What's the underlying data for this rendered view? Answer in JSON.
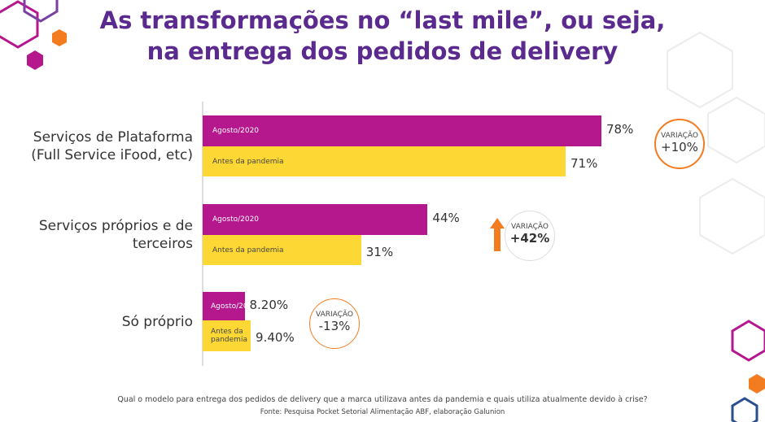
{
  "chart_data": {
    "type": "bar",
    "title": [
      "As transformações no “last mile”, ou seja,",
      "na entrega dos pedidos de delivery"
    ],
    "categories": [
      "Serviços de Plataforma (Full Service iFood, etc)",
      "Serviços próprios e de terceiros",
      "Só próprio"
    ],
    "series": [
      {
        "name": "Agosto/2020",
        "color": "#b5178d",
        "values": [
          78,
          44,
          8.2
        ],
        "value_labels": [
          "78%",
          "44%",
          "8.20%"
        ]
      },
      {
        "name": "Antes da pandemia",
        "color": "#fdd835",
        "values": [
          71,
          31,
          9.4
        ],
        "value_labels": [
          "71%",
          "31%",
          "9.40%"
        ]
      }
    ],
    "annotations": [
      {
        "label": "VARIAÇÃO",
        "value": "+10%"
      },
      {
        "label": "VARIAÇÃO",
        "value": "+42%"
      },
      {
        "label": "VARIAÇÃO",
        "value": "-13%"
      }
    ],
    "question": "Qual o modelo para entrega dos pedidos de delivery que a marca utilizava antes da pandemia e quais utiliza atualmente devido à crise?",
    "source": "Fonte: Pesquisa Pocket Setorial Alimentação ABF, elaboração Galunion"
  }
}
